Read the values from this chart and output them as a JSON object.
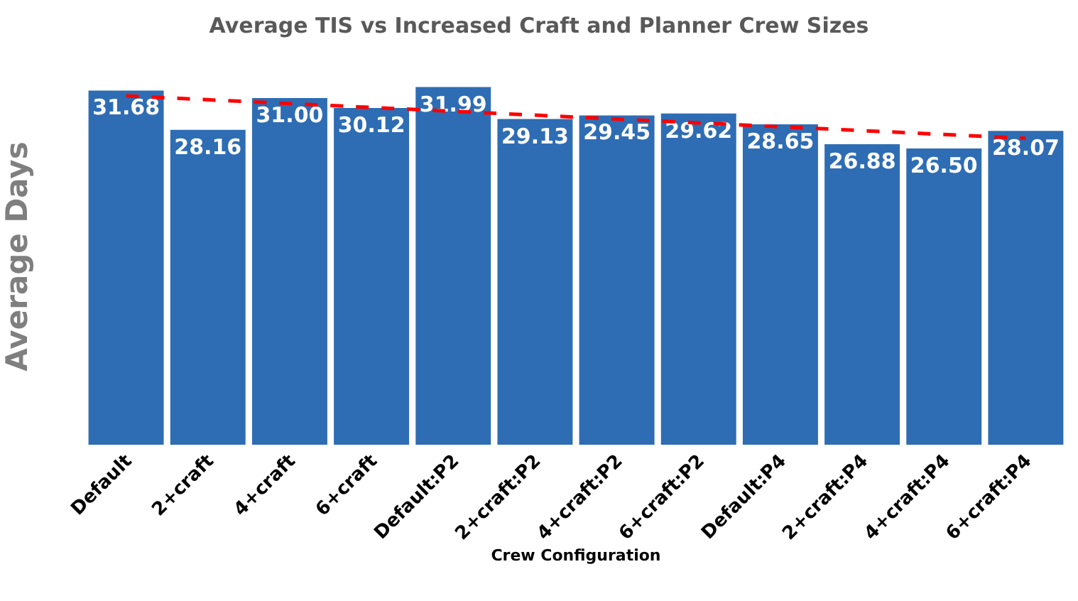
{
  "chart_data": {
    "type": "bar",
    "title": "Average TIS vs Increased Craft and Planner Crew Sizes",
    "xlabel": "Crew Configuration",
    "ylabel": "Average Days",
    "categories": [
      "Default",
      "2+craft",
      "4+craft",
      "6+craft",
      "Default:P2",
      "2+craft:P2",
      "4+craft:P2",
      "6+craft:P2",
      "Default:P4",
      "2+craft:P4",
      "4+craft:P4",
      "6+craft:P4"
    ],
    "series": [
      {
        "color": "#2e6db4",
        "values": [
          31.68,
          28.16,
          31.0,
          30.12,
          31.99,
          29.13,
          29.45,
          29.62,
          28.65,
          26.88,
          26.5,
          28.07
        ],
        "value_labels": [
          "31.68",
          "28.16",
          "31.00",
          "30.12",
          "31.99",
          "29.13",
          "29.45",
          "29.62",
          "28.65",
          "26.88",
          "26.50",
          "28.07"
        ]
      },
      {
        "type": "line",
        "color": "#ff0000",
        "line_style": "dashed",
        "marker": "none",
        "x": [
          "Default",
          "6+craft:P4"
        ],
        "values": [
          31.2,
          27.4
        ]
      }
    ],
    "tick_labels": "x",
    "grid": false
  }
}
